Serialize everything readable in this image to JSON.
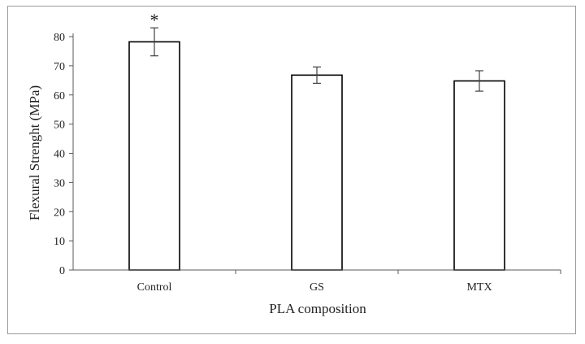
{
  "chart_data": {
    "type": "bar",
    "categories": [
      "Control",
      "GS",
      "MTX"
    ],
    "values": [
      78.2,
      66.8,
      64.8
    ],
    "errors": [
      4.8,
      2.8,
      3.5
    ],
    "annotations": [
      "*",
      "",
      ""
    ],
    "xlabel": "PLA composition",
    "ylabel": "Flexural Strenght (MPa)",
    "ylim": [
      0,
      80
    ],
    "yticks": [
      0,
      10,
      20,
      30,
      40,
      50,
      60,
      70,
      80
    ],
    "grid": false,
    "legend": "none",
    "colors": {
      "bar_fill": "#ffffff",
      "bar_stroke": "#000000",
      "axis": "#595959",
      "error": "#404040"
    }
  }
}
